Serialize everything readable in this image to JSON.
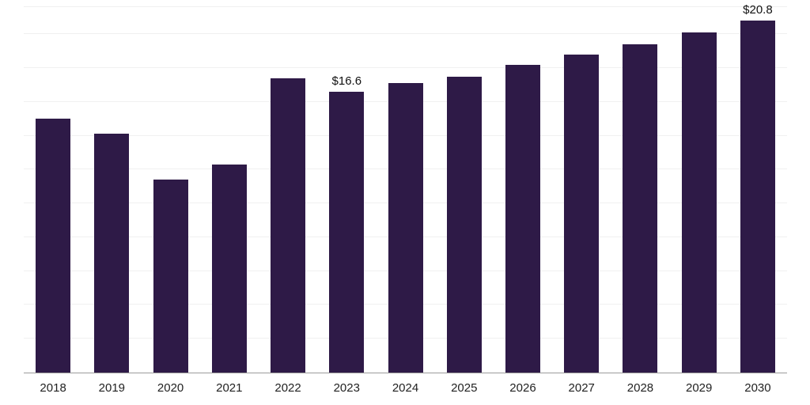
{
  "chart_data": {
    "type": "bar",
    "title": "",
    "xlabel": "",
    "ylabel": "",
    "categories": [
      "2018",
      "2019",
      "2020",
      "2021",
      "2022",
      "2023",
      "2024",
      "2025",
      "2026",
      "2027",
      "2028",
      "2029",
      "2030"
    ],
    "values": [
      15.0,
      14.1,
      11.4,
      12.3,
      17.4,
      16.6,
      17.1,
      17.5,
      18.2,
      18.8,
      19.4,
      20.1,
      20.8
    ],
    "labeled_points": {
      "2023": "$16.6",
      "2030": "$20.8"
    },
    "ylim": [
      0,
      21.6
    ],
    "grid": true,
    "grid_interval": 2,
    "legend": "none",
    "bar_color": "#2e1a47",
    "gridline_color": "#f0f0f0",
    "axis_line_color": "#9b9b9b",
    "label_color": "#222222",
    "value_label_color": "#111111"
  }
}
